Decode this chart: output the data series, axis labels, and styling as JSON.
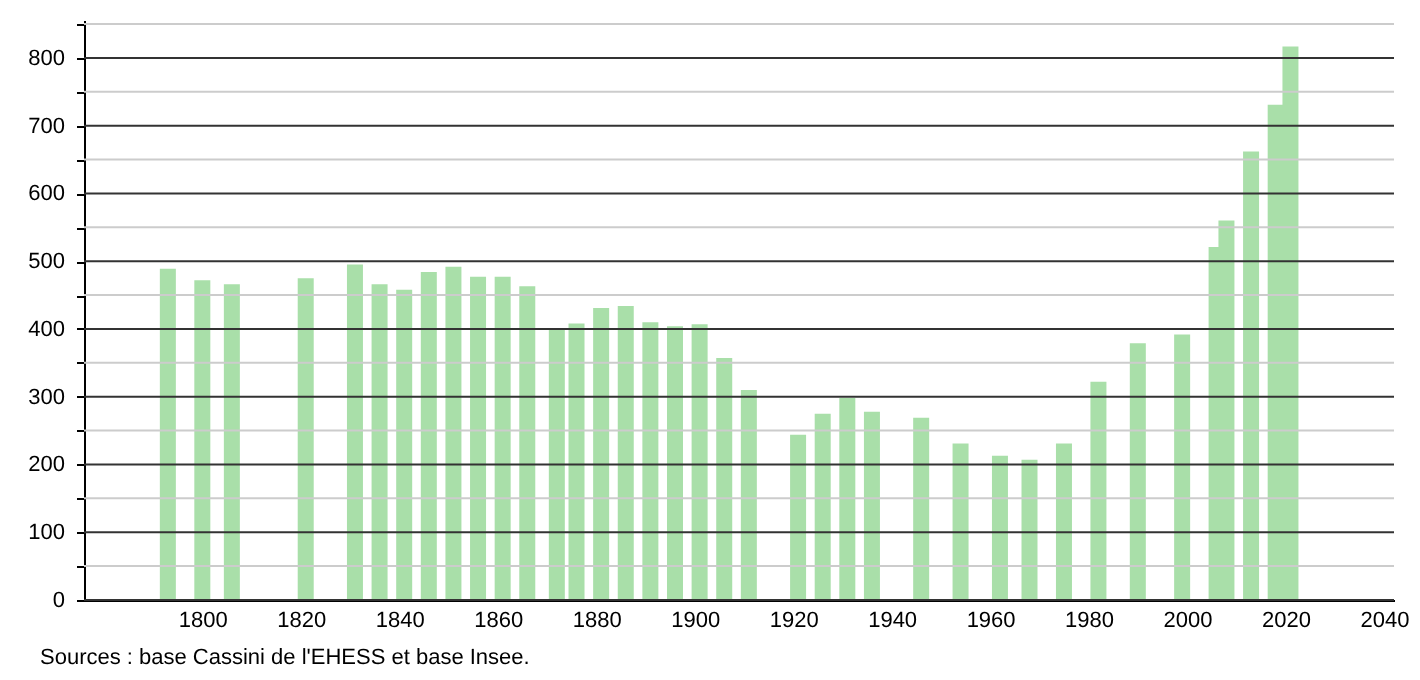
{
  "chart_data": {
    "type": "bar",
    "x": [
      1793,
      1800,
      1806,
      1821,
      1831,
      1836,
      1841,
      1846,
      1851,
      1856,
      1861,
      1866,
      1872,
      1876,
      1881,
      1886,
      1891,
      1896,
      1901,
      1906,
      1911,
      1921,
      1926,
      1931,
      1936,
      1946,
      1954,
      1962,
      1968,
      1975,
      1982,
      1990,
      1999,
      2006,
      2008,
      2013,
      2018,
      2021
    ],
    "values": [
      489,
      472,
      466,
      475,
      495,
      466,
      458,
      484,
      492,
      477,
      477,
      463,
      401,
      408,
      431,
      434,
      410,
      404,
      407,
      357,
      310,
      244,
      275,
      298,
      278,
      269,
      231,
      213,
      207,
      231,
      322,
      379,
      392,
      521,
      560,
      662,
      731,
      817
    ],
    "color": "#a9dfa9",
    "xlim": [
      1778,
      2040
    ],
    "xticks": [
      1800,
      1820,
      1840,
      1860,
      1880,
      1900,
      1920,
      1940,
      1960,
      1980,
      2000,
      2020,
      2040
    ],
    "ylim": [
      0,
      856
    ],
    "yticks": [
      0,
      {
        "value": 50,
        "label": null
      },
      100,
      {
        "value": 150,
        "label": null
      },
      200,
      {
        "value": 250,
        "label": null
      },
      300,
      {
        "value": 350,
        "label": null
      },
      400,
      {
        "value": 450,
        "label": null
      },
      500,
      {
        "value": 550,
        "label": null
      },
      600,
      {
        "value": 650,
        "label": null
      },
      700,
      {
        "value": 750,
        "label": null
      },
      800,
      {
        "value": 850,
        "label": null
      }
    ],
    "grid": "y",
    "annotations": [
      "Sources : base Cassini de l'EHESS et base Insee."
    ]
  }
}
